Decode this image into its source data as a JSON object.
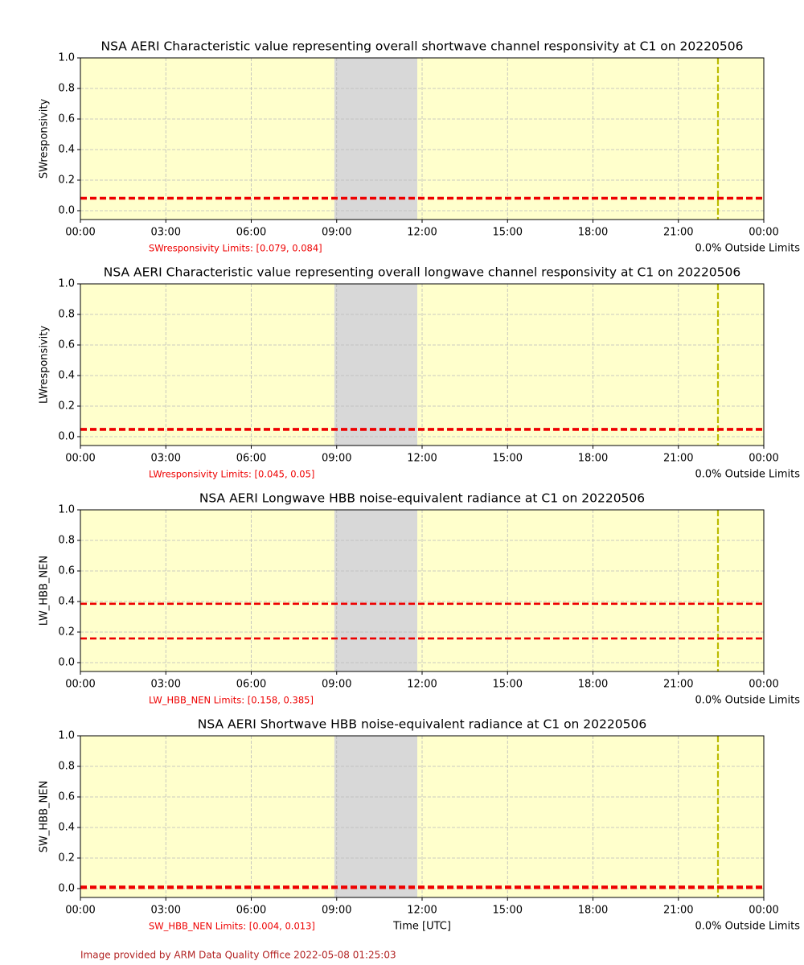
{
  "chart_data": [
    {
      "type": "line",
      "title": "NSA AERI Characteristic value representing overall shortwave channel responsivity at C1 on 20220506",
      "ylabel": "SWresponsivity",
      "xlim": [
        0,
        24
      ],
      "ylim": [
        -0.058,
        1.0
      ],
      "xticks": [
        {
          "value": 0,
          "label": "00:00"
        },
        {
          "value": 3,
          "label": "03:00"
        },
        {
          "value": 6,
          "label": "06:00"
        },
        {
          "value": 9,
          "label": "09:00"
        },
        {
          "value": 12,
          "label": "12:00"
        },
        {
          "value": 15,
          "label": "15:00"
        },
        {
          "value": 18,
          "label": "18:00"
        },
        {
          "value": 21,
          "label": "21:00"
        },
        {
          "value": 24,
          "label": "00:00"
        }
      ],
      "yticks": [
        {
          "value": 0,
          "label": "0.0"
        },
        0.2,
        0.4,
        0.6,
        0.8,
        {
          "value": 1,
          "label": "1.0"
        }
      ],
      "limits": [
        0.079,
        0.084
      ],
      "limits_label": "SWresponsivity Limits: [0.079, 0.084]",
      "outside_label": "0.0% Outside Limits",
      "shaded": [
        8.92,
        11.83
      ],
      "vline": 22.39,
      "grid": true,
      "background": "#ffffcc",
      "limit_color": "#ee0000",
      "vline_color": "#bbbb00",
      "shade_color": "#d8d8d8"
    },
    {
      "type": "line",
      "title": "NSA AERI Characteristic value representing overall longwave channel responsivity at C1 on 20220506",
      "ylabel": "LWresponsivity",
      "xlim": [
        0,
        24
      ],
      "ylim": [
        -0.058,
        1.0
      ],
      "xticks": [
        {
          "value": 0,
          "label": "00:00"
        },
        {
          "value": 3,
          "label": "03:00"
        },
        {
          "value": 6,
          "label": "06:00"
        },
        {
          "value": 9,
          "label": "09:00"
        },
        {
          "value": 12,
          "label": "12:00"
        },
        {
          "value": 15,
          "label": "15:00"
        },
        {
          "value": 18,
          "label": "18:00"
        },
        {
          "value": 21,
          "label": "21:00"
        },
        {
          "value": 24,
          "label": "00:00"
        }
      ],
      "yticks": [
        {
          "value": 0,
          "label": "0.0"
        },
        0.2,
        0.4,
        0.6,
        0.8,
        {
          "value": 1,
          "label": "1.0"
        }
      ],
      "limits": [
        0.045,
        0.05
      ],
      "limits_label": "LWresponsivity Limits: [0.045, 0.05]",
      "outside_label": "0.0% Outside Limits",
      "shaded": [
        8.92,
        11.83
      ],
      "vline": 22.39,
      "grid": true,
      "background": "#ffffcc",
      "limit_color": "#ee0000",
      "vline_color": "#bbbb00",
      "shade_color": "#d8d8d8"
    },
    {
      "type": "line",
      "title": "NSA AERI Longwave HBB noise-equivalent radiance at C1 on 20220506",
      "ylabel": "LW_HBB_NEN",
      "xlim": [
        0,
        24
      ],
      "ylim": [
        -0.058,
        1.0
      ],
      "xticks": [
        {
          "value": 0,
          "label": "00:00"
        },
        {
          "value": 3,
          "label": "03:00"
        },
        {
          "value": 6,
          "label": "06:00"
        },
        {
          "value": 9,
          "label": "09:00"
        },
        {
          "value": 12,
          "label": "12:00"
        },
        {
          "value": 15,
          "label": "15:00"
        },
        {
          "value": 18,
          "label": "18:00"
        },
        {
          "value": 21,
          "label": "21:00"
        },
        {
          "value": 24,
          "label": "00:00"
        }
      ],
      "yticks": [
        {
          "value": 0,
          "label": "0.0"
        },
        0.2,
        0.4,
        0.6,
        0.8,
        {
          "value": 1,
          "label": "1.0"
        }
      ],
      "limits": [
        0.158,
        0.385
      ],
      "limits_label": "LW_HBB_NEN Limits: [0.158, 0.385]",
      "outside_label": "0.0% Outside Limits",
      "shaded": [
        8.92,
        11.83
      ],
      "vline": 22.39,
      "grid": true,
      "background": "#ffffcc",
      "limit_color": "#ee0000",
      "vline_color": "#bbbb00",
      "shade_color": "#d8d8d8"
    },
    {
      "type": "line",
      "title": "NSA AERI Shortwave HBB noise-equivalent radiance at C1 on 20220506",
      "ylabel": "SW_HBB_NEN",
      "xlabel": "Time [UTC]",
      "xlim": [
        0,
        24
      ],
      "ylim": [
        -0.058,
        1.0
      ],
      "xticks": [
        {
          "value": 0,
          "label": "00:00"
        },
        {
          "value": 3,
          "label": "03:00"
        },
        {
          "value": 6,
          "label": "06:00"
        },
        {
          "value": 9,
          "label": "09:00"
        },
        {
          "value": 12,
          "label": "12:00"
        },
        {
          "value": 15,
          "label": "15:00"
        },
        {
          "value": 18,
          "label": "18:00"
        },
        {
          "value": 21,
          "label": "21:00"
        },
        {
          "value": 24,
          "label": "00:00"
        }
      ],
      "yticks": [
        {
          "value": 0,
          "label": "0.0"
        },
        0.2,
        0.4,
        0.6,
        0.8,
        {
          "value": 1,
          "label": "1.0"
        }
      ],
      "limits": [
        0.004,
        0.013
      ],
      "limits_label": "SW_HBB_NEN Limits: [0.004, 0.013]",
      "outside_label": "0.0% Outside Limits",
      "shaded": [
        8.92,
        11.83
      ],
      "vline": 22.39,
      "grid": true,
      "background": "#ffffcc",
      "limit_color": "#ee0000",
      "vline_color": "#bbbb00",
      "shade_color": "#d8d8d8"
    }
  ],
  "footer": "Image provided by ARM Data Quality Office 2022-05-08 01:25:03"
}
